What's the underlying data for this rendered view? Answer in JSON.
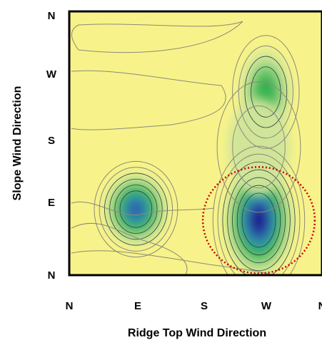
{
  "chart_data": {
    "type": "heatmap",
    "title": "",
    "xlabel": "Ridge Top Wind Direction",
    "ylabel": "Slope Wind Direction",
    "x_ticks": [
      "N",
      "E",
      "S",
      "W",
      "N"
    ],
    "y_ticks": [
      "N",
      "W",
      "S",
      "E",
      "N"
    ],
    "xlim": [
      0,
      360
    ],
    "ylim": [
      0,
      360
    ],
    "grid": false,
    "colormap": [
      "#f7f38a",
      "#cfe59a",
      "#7fd07a",
      "#2fb04e",
      "#2f9ea0",
      "#2d5fb0",
      "#1a1a8a"
    ],
    "background_color": "#f7f38a",
    "highlight_color": "#cc0000",
    "peaks": [
      {
        "x": 270,
        "y": 75,
        "intensity": 1.0,
        "spread_x": 22,
        "spread_y": 34,
        "highlighted": true
      },
      {
        "x": 95,
        "y": 90,
        "intensity": 0.8,
        "spread_x": 20,
        "spread_y": 22,
        "highlighted": false
      },
      {
        "x": 280,
        "y": 250,
        "intensity": 0.55,
        "spread_x": 16,
        "spread_y": 26,
        "highlighted": false
      },
      {
        "x": 270,
        "y": 175,
        "intensity": 0.12,
        "spread_x": 20,
        "spread_y": 30,
        "highlighted": false
      }
    ],
    "highlight": {
      "x": 270,
      "y": 75,
      "radius_deg": 55
    }
  }
}
